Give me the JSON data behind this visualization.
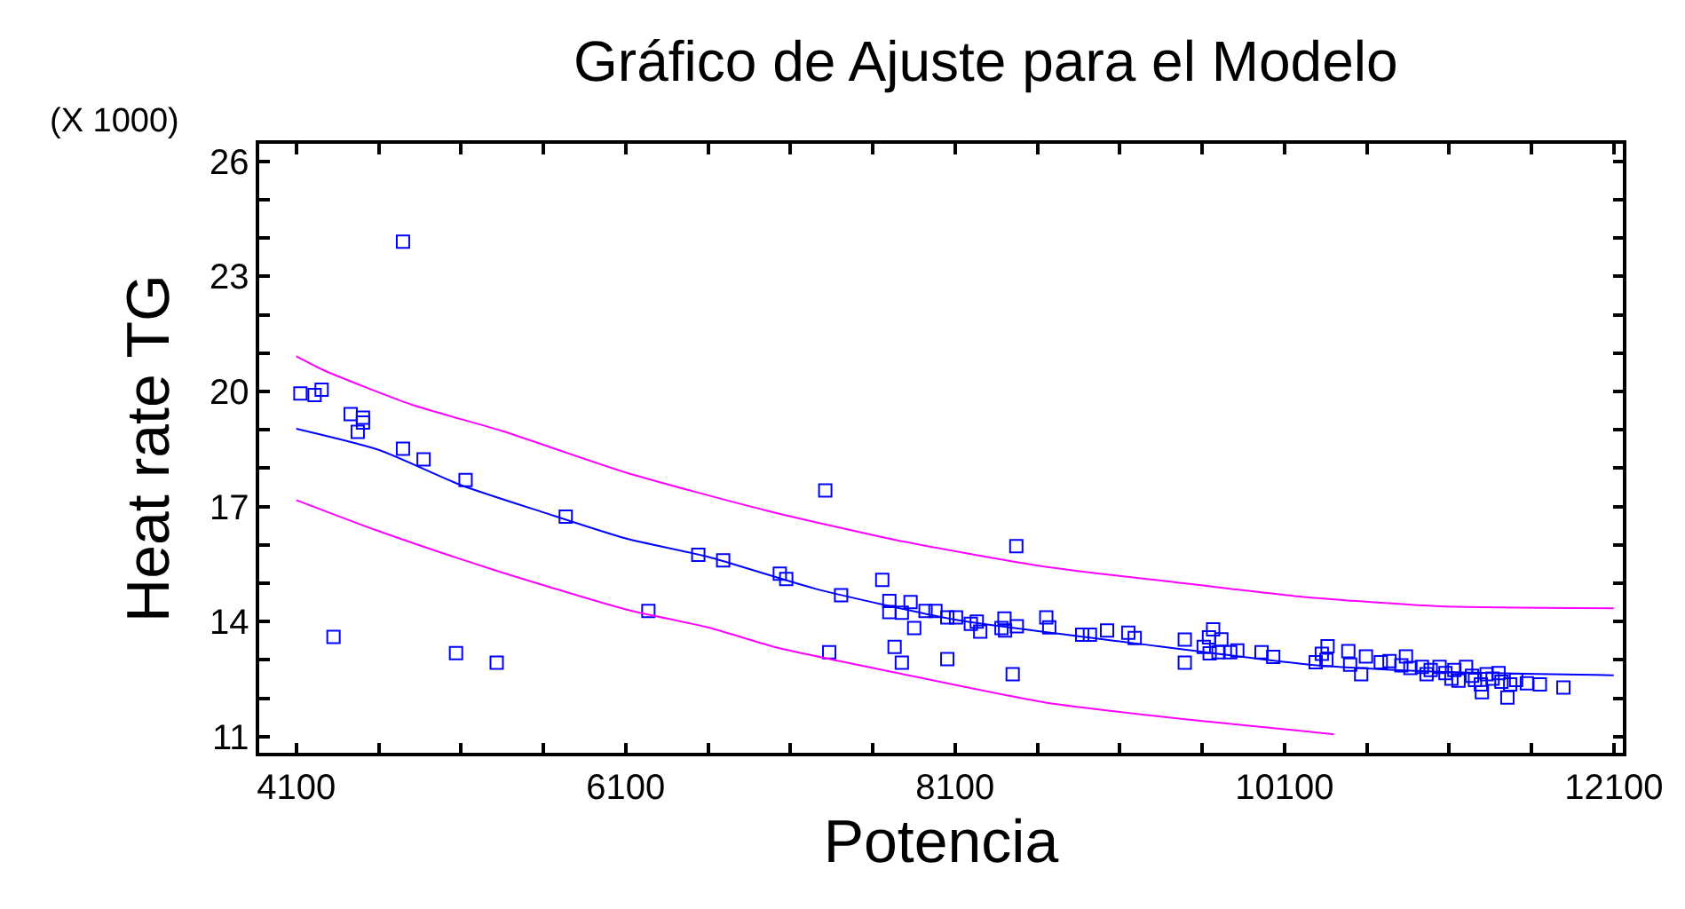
{
  "chart_data": {
    "type": "scatter",
    "title": "Gráfico de Ajuste para el Modelo",
    "xlabel": "Potencia",
    "ylabel": "Heat rate TG",
    "annotations": [
      "(X 1000)"
    ],
    "xlim": [
      3875,
      12155
    ],
    "ylim": [
      10.58,
      26.46
    ],
    "xticks": [
      4100,
      {
        "value": 4600,
        "label": null
      },
      {
        "value": 5100,
        "label": null
      },
      {
        "value": 5600,
        "label": null
      },
      6100,
      {
        "value": 6600,
        "label": null
      },
      {
        "value": 7100,
        "label": null
      },
      {
        "value": 7600,
        "label": null
      },
      8100,
      {
        "value": 8600,
        "label": null
      },
      {
        "value": 9100,
        "label": null
      },
      {
        "value": 9600,
        "label": null
      },
      10100,
      {
        "value": 10600,
        "label": null
      },
      {
        "value": 11100,
        "label": null
      },
      {
        "value": 11600,
        "label": null
      },
      12100
    ],
    "yticks": [
      11,
      {
        "value": 12,
        "label": null
      },
      {
        "value": 13,
        "label": null
      },
      14,
      {
        "value": 15,
        "label": null
      },
      {
        "value": 16,
        "label": null
      },
      17,
      {
        "value": 18,
        "label": null
      },
      {
        "value": 19,
        "label": null
      },
      20,
      {
        "value": 21,
        "label": null
      },
      {
        "value": 22,
        "label": null
      },
      23,
      {
        "value": 24,
        "label": null
      },
      {
        "value": 25,
        "label": null
      },
      26
    ],
    "marker": "square",
    "series": [
      {
        "color": "#0000ff",
        "x": [
          4125,
          4211,
          4254,
          4430,
          4505,
          4505,
          4473,
          4748,
          4748,
          4873,
          5128,
          5736,
          6541,
          6692,
          7036,
          7075,
          6238,
          4326,
          5070,
          5317,
          7312,
          8472,
          7408,
          7658,
          7701,
          7701,
          7777,
          7830,
          7852,
          7921,
          7981,
          8053,
          8106,
          8196,
          8232,
          8253,
          8382,
          8400,
          8404,
          8475,
          8654,
          8672,
          8872,
          8919,
          9023,
          9152,
          9191,
          9495,
          9495,
          9667,
          9642,
          9717,
          9610,
          9646,
          9700,
          9771,
          9814,
          9961,
          10032,
          7336,
          7733,
          7777,
          8053,
          8450,
          10290,
          10327,
          10362,
          10355,
          10488,
          10499,
          10566,
          10595,
          10685,
          10738,
          10838,
          10810,
          10935,
          10963,
          11042,
          11078,
          11132,
          11157,
          11203,
          11239,
          11293,
          11299,
          11328,
          11364,
          11418,
          11454,
          11471,
          11507,
          11572,
          11651,
          11794,
          10865,
          10988,
          11114,
          11257,
          11400
        ],
        "values": [
          19.95,
          19.91,
          20.05,
          19.41,
          19.32,
          19.19,
          18.95,
          23.91,
          18.51,
          18.23,
          17.69,
          16.74,
          15.74,
          15.6,
          15.25,
          15.11,
          14.28,
          13.6,
          13.18,
          12.93,
          17.42,
          15.97,
          14.69,
          15.09,
          14.54,
          14.25,
          14.23,
          14.51,
          13.83,
          14.28,
          14.28,
          14.11,
          14.11,
          13.94,
          14.0,
          13.74,
          13.83,
          14.08,
          13.77,
          13.88,
          14.11,
          13.85,
          13.66,
          13.66,
          13.77,
          13.71,
          13.57,
          13.53,
          12.93,
          13.8,
          13.59,
          13.54,
          13.34,
          13.17,
          13.2,
          13.2,
          13.25,
          13.2,
          13.08,
          13.2,
          13.34,
          12.93,
          13.02,
          12.63,
          12.94,
          13.16,
          13.36,
          13.0,
          13.23,
          12.88,
          12.63,
          13.09,
          12.94,
          12.97,
          13.09,
          12.86,
          12.82,
          12.63,
          12.82,
          12.66,
          12.74,
          12.46,
          12.82,
          12.59,
          12.36,
          12.16,
          12.63,
          12.51,
          12.43,
          12.02,
          12.36,
          12.48,
          12.39,
          12.36,
          12.28,
          12.79,
          12.74,
          12.51,
          12.48,
          12.66
        ]
      },
      {
        "type": "line",
        "marker": "none",
        "color": "#0000ff",
        "x": [
          4100,
          4600,
          5100,
          5600,
          6100,
          6600,
          7250,
          8100,
          9200,
          10250,
          11000,
          12100
        ],
        "values": [
          19.03,
          18.48,
          17.56,
          16.85,
          16.17,
          15.69,
          14.86,
          14.05,
          13.43,
          12.88,
          12.7,
          12.6
        ]
      },
      {
        "type": "line",
        "marker": "none",
        "color": "#ff00ff",
        "x": [
          4100,
          4275,
          4800,
          5350,
          6100,
          6950,
          7750,
          8650,
          9550,
          10250,
          11050,
          12100
        ],
        "values": [
          20.92,
          20.54,
          19.66,
          18.97,
          17.89,
          16.9,
          16.12,
          15.43,
          14.97,
          14.63,
          14.4,
          14.35
        ]
      },
      {
        "type": "line",
        "marker": "none",
        "color": "#ff00ff",
        "x": [
          4100,
          4600,
          5300,
          6100,
          6600,
          7030,
          7750,
          8650,
          9550,
          10250,
          10400
        ],
        "values": [
          17.17,
          16.36,
          15.35,
          14.32,
          13.85,
          13.31,
          12.66,
          11.89,
          11.43,
          11.13,
          11.06
        ]
      }
    ]
  }
}
